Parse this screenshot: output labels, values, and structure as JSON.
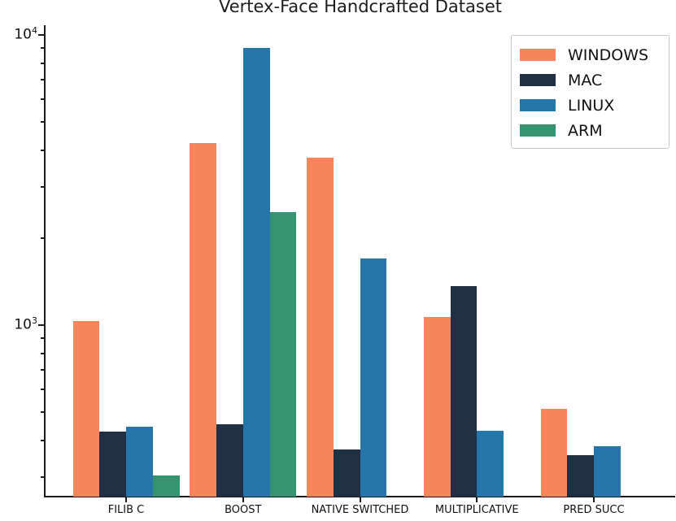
{
  "chart_data": {
    "type": "bar",
    "title": "Vertex-Face Handcrafted Dataset",
    "xlabel": "",
    "ylabel": "",
    "yscale": "log",
    "grid": false,
    "legend_position": "upper right",
    "categories": [
      "FILIB C",
      "BOOST",
      "NATIVE SWITCHED",
      "MULTIPLICATIVE",
      "PRED SUCC"
    ],
    "series": [
      {
        "name": "WINDOWS",
        "color": "#f7855a",
        "values": [
          1030,
          4240,
          3780,
          1070,
          515
        ]
      },
      {
        "name": "MAC",
        "color": "#1f3044",
        "values": [
          430,
          455,
          373,
          1360,
          356
        ]
      },
      {
        "name": "LINUX",
        "color": "#2676ac",
        "values": [
          447,
          9020,
          1700,
          432,
          383
        ]
      },
      {
        "name": "ARM",
        "color": "#35946f",
        "values": [
          303,
          2450,
          null,
          null,
          null
        ]
      }
    ],
    "ylim": [
      257,
      10850
    ],
    "ytick_major_values": [
      1000,
      10000
    ],
    "ytick_major_labels": [
      "10^3",
      "10^4"
    ],
    "ytick_minor_values": [
      300,
      400,
      500,
      600,
      700,
      800,
      900,
      2000,
      3000,
      4000,
      5000,
      6000,
      7000,
      8000,
      9000
    ]
  }
}
